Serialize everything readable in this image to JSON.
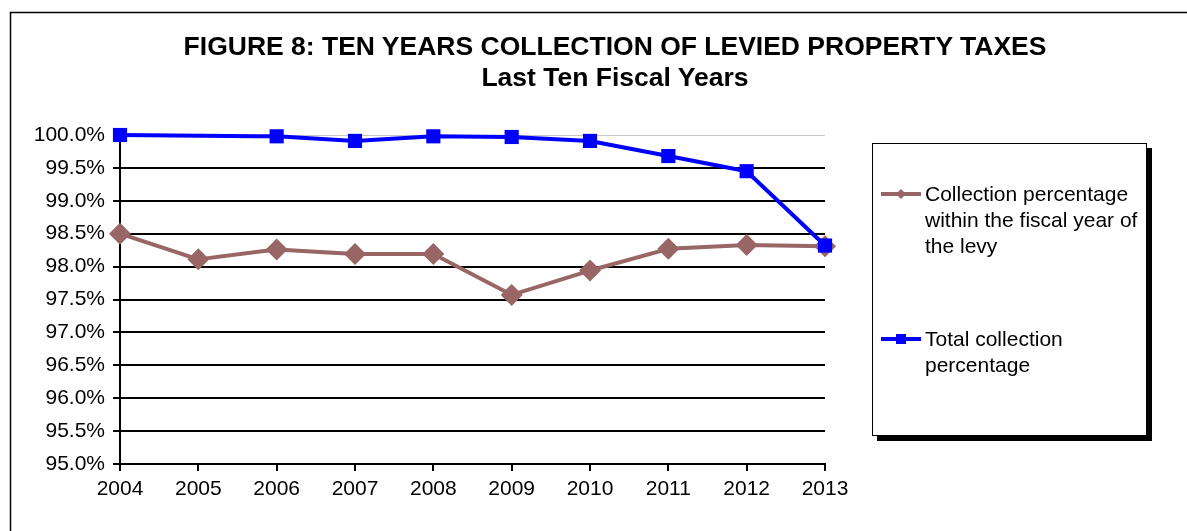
{
  "chart_data": {
    "type": "line",
    "title": "FIGURE 8: TEN YEARS COLLECTION OF LEVIED PROPERTY TAXES",
    "subtitle": "Last Ten Fiscal Years",
    "categories": [
      "2004",
      "2005",
      "2006",
      "2007",
      "2008",
      "2009",
      "2010",
      "2011",
      "2012",
      "2013"
    ],
    "series": [
      {
        "name": "Collection percentage within the fiscal year of the levy",
        "color": "#996666",
        "marker": "diamond",
        "values": [
          98.5,
          98.11,
          98.26,
          98.19,
          98.19,
          97.57,
          97.94,
          98.27,
          98.33,
          98.31
        ]
      },
      {
        "name": "Total collection percentage",
        "color": "#0000ff",
        "marker": "square",
        "values": [
          100.0,
          null,
          99.98,
          99.91,
          99.98,
          99.97,
          99.91,
          99.68,
          99.45,
          98.32
        ]
      }
    ],
    "ylim": [
      95,
      100
    ],
    "yticks": [
      {
        "value": 95,
        "label": "95.0%"
      },
      {
        "value": 95.5,
        "label": "95.5%"
      },
      {
        "value": 96,
        "label": "96.0%"
      },
      {
        "value": 96.5,
        "label": "96.5%"
      },
      {
        "value": 97,
        "label": "97.0%"
      },
      {
        "value": 97.5,
        "label": "97.5%"
      },
      {
        "value": 98,
        "label": "98.0%"
      },
      {
        "value": 98.5,
        "label": "98.5%"
      },
      {
        "value": 99,
        "label": "99.0%"
      },
      {
        "value": 99.5,
        "label": "99.5%"
      },
      {
        "value": 100,
        "label": "100.0%"
      }
    ],
    "grid": "y",
    "legend": "right",
    "line_style": "solid"
  }
}
